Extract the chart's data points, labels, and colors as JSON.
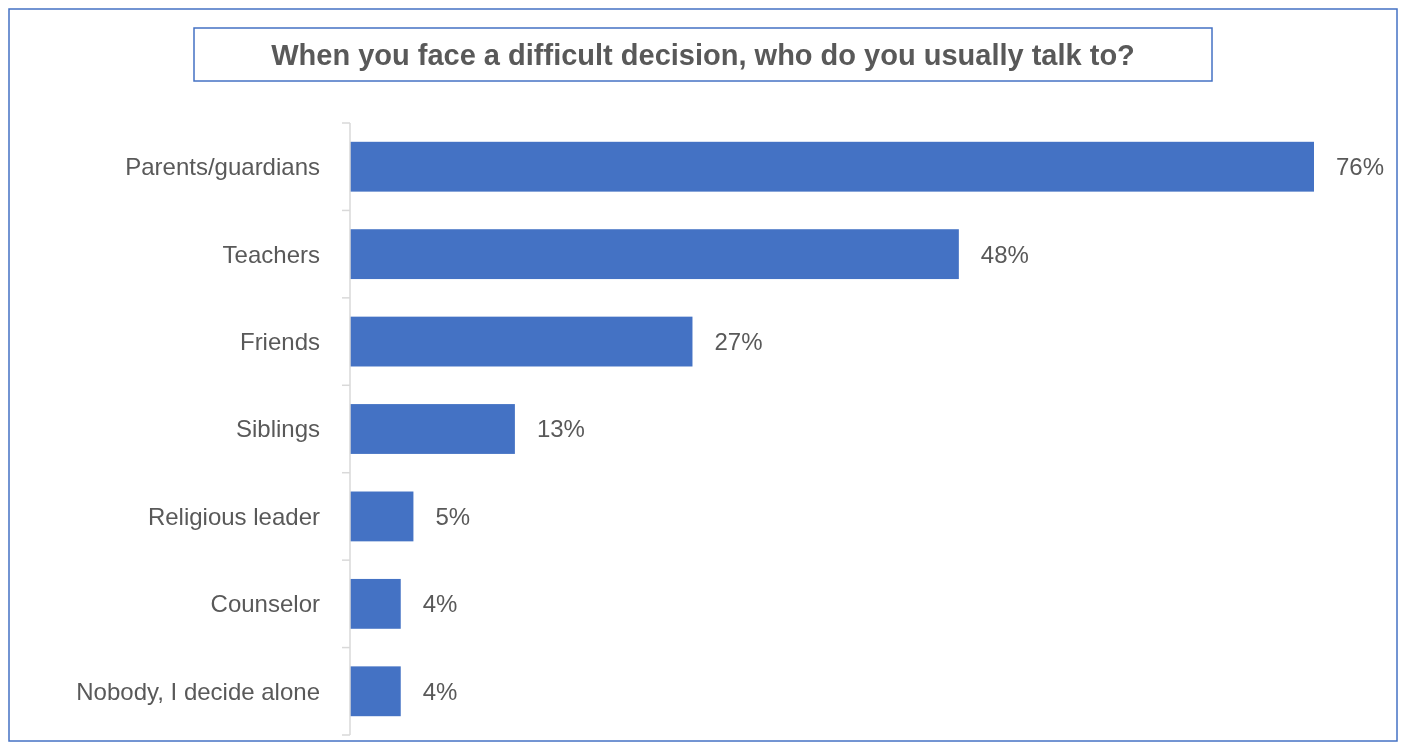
{
  "chart_data": {
    "type": "bar",
    "orientation": "horizontal",
    "title": "When you face a difficult decision, who do you usually talk to?",
    "categories": [
      "Parents/guardians",
      "Teachers",
      "Friends",
      "Siblings",
      "Religious leader",
      "Counselor",
      "Nobody, I decide alone"
    ],
    "values": [
      76,
      48,
      27,
      13,
      5,
      4,
      4
    ],
    "value_labels": [
      "76%",
      "48%",
      "27%",
      "13%",
      "5%",
      "4%",
      "4%"
    ],
    "color": "#4472c4"
  }
}
